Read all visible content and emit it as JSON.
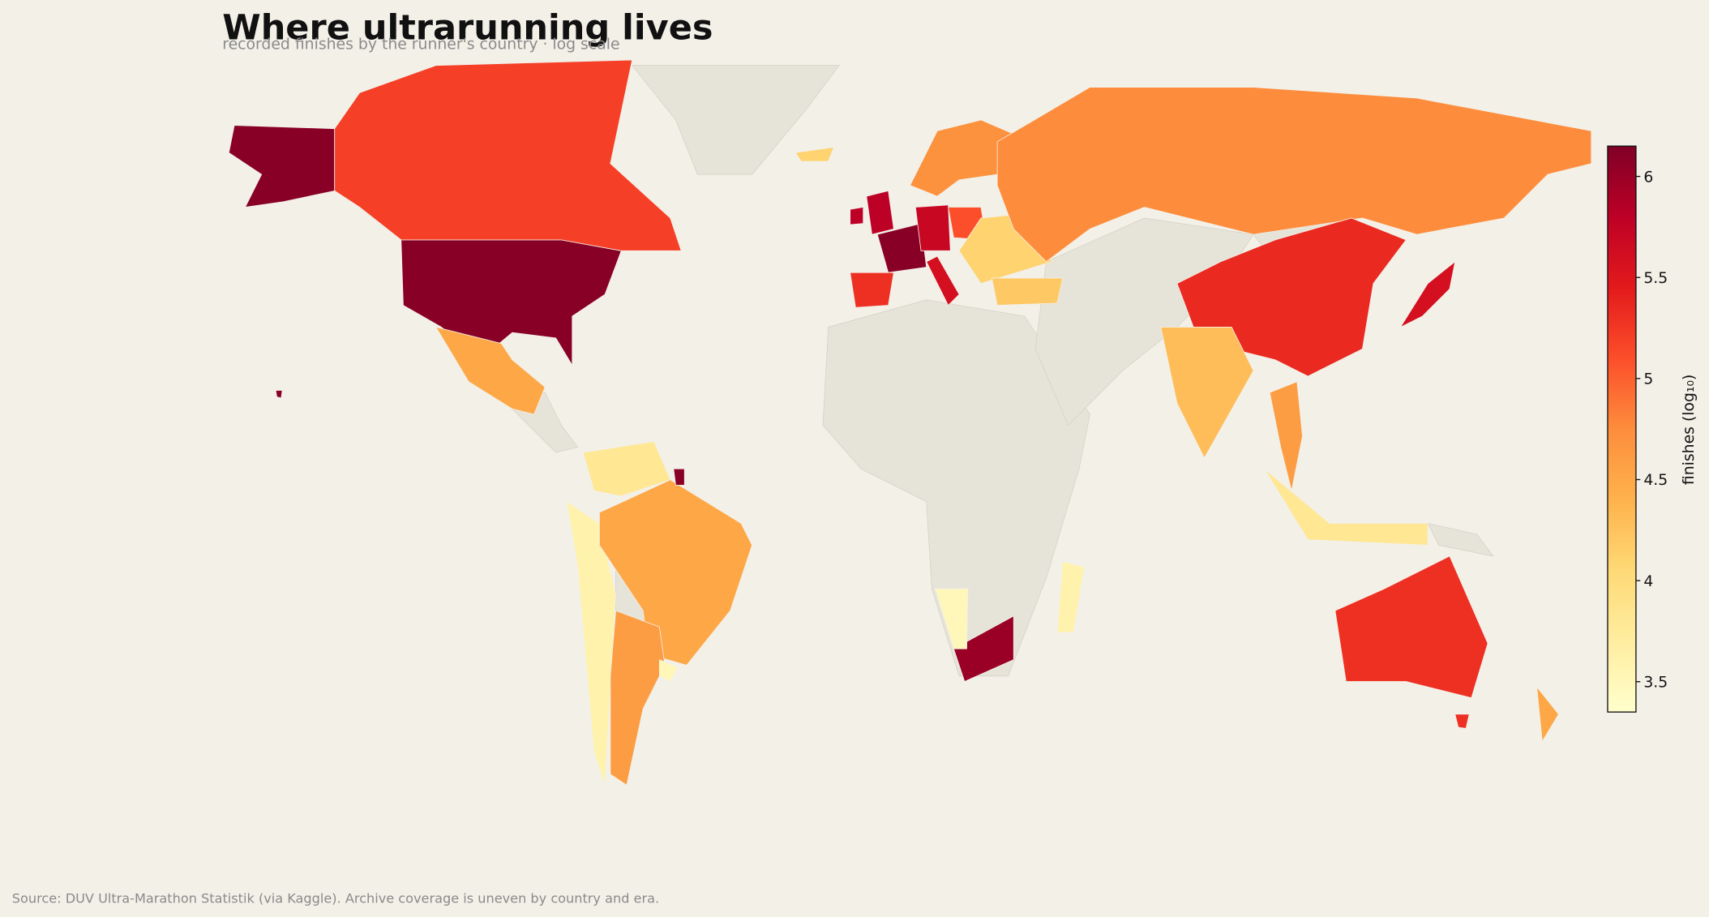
{
  "chart_data": {
    "type": "choropleth",
    "title": "Where ultrarunning lives",
    "subtitle": "recorded finishes by the runner's country · log scale",
    "source": "Source: DUV Ultra-Marathon Statistik (via Kaggle). Archive coverage is uneven by country and era.",
    "colorbar_label": "finishes (log₁₀)",
    "colormap": "YlOrRd",
    "no_data_color": "#e6e3d9",
    "clim": [
      3.35,
      6.15
    ],
    "cticks": [
      3.5,
      4.0,
      4.5,
      5.0,
      5.5,
      6.0
    ],
    "values": [
      6.1,
      5.2,
      4.5,
      3.8,
      3.6,
      4.5,
      4.6,
      6.1,
      3.5,
      5.8,
      6.1,
      5.3,
      5.7,
      5.6,
      5.1,
      4.7,
      4.1,
      4.2,
      4.75,
      4.1,
      5.35,
      4.3,
      5.6,
      4.6,
      3.8,
      5.3,
      4.5,
      6.0,
      3.5,
      3.6
    ]
  }
}
